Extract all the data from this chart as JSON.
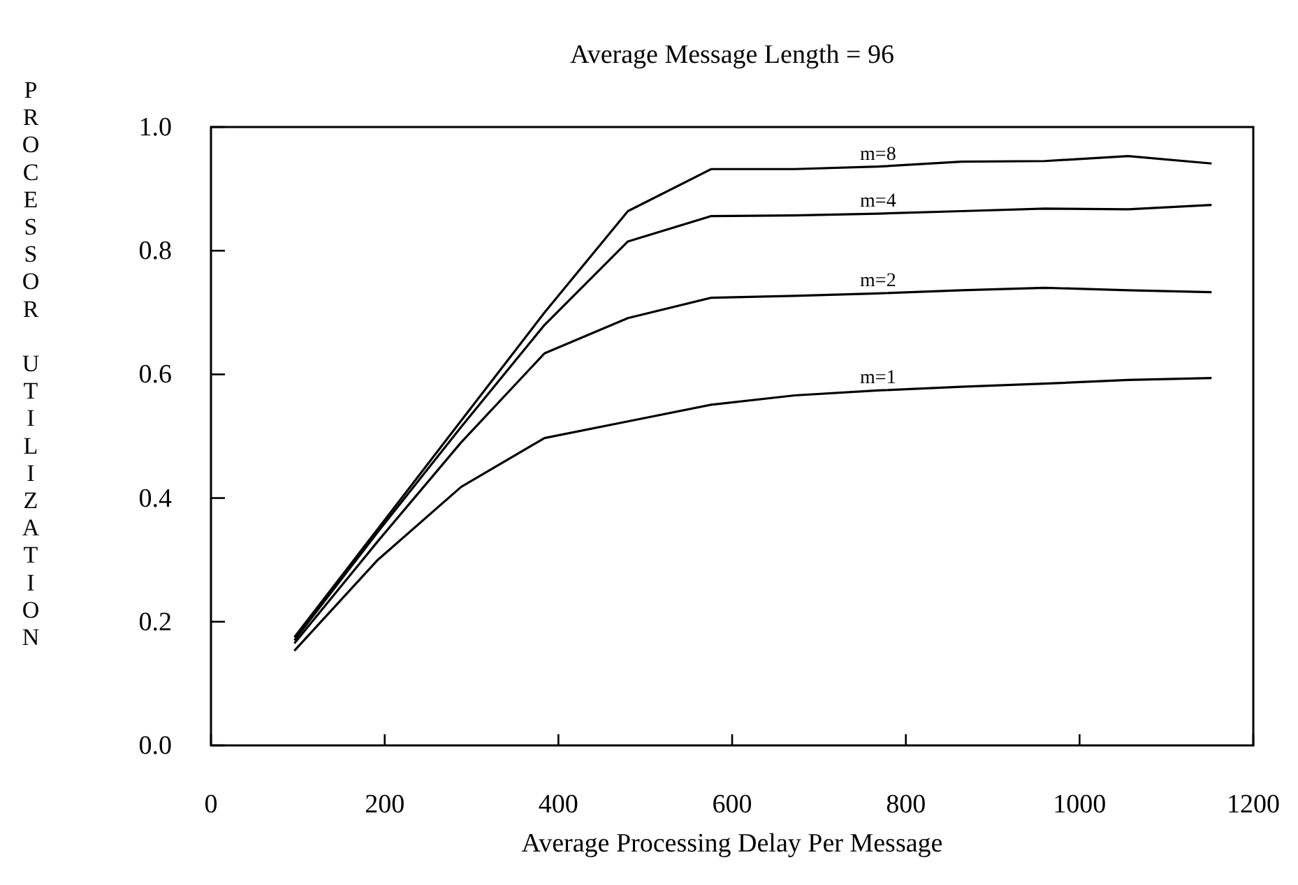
{
  "chart_data": {
    "type": "line",
    "title": "Average Message Length = 96",
    "xlabel": "Average Processing Delay Per Message",
    "ylabel": "PROCESSOR UTILIZATION",
    "x": [
      96,
      192,
      288,
      384,
      480,
      576,
      672,
      768,
      864,
      960,
      1056,
      1152
    ],
    "series": [
      {
        "name": "m=1",
        "color": "#000000",
        "values": [
          0.153,
          0.3,
          0.418,
          0.497,
          0.524,
          0.551,
          0.566,
          0.574,
          0.58,
          0.585,
          0.591,
          0.594
        ]
      },
      {
        "name": "m=2",
        "color": "#000000",
        "values": [
          0.165,
          0.33,
          0.49,
          0.634,
          0.691,
          0.724,
          0.727,
          0.731,
          0.736,
          0.74,
          0.736,
          0.733
        ]
      },
      {
        "name": "m=4",
        "color": "#000000",
        "values": [
          0.17,
          0.345,
          0.515,
          0.68,
          0.815,
          0.856,
          0.857,
          0.86,
          0.864,
          0.868,
          0.867,
          0.874
        ]
      },
      {
        "name": "m=8",
        "color": "#000000",
        "values": [
          0.175,
          0.35,
          0.525,
          0.7,
          0.864,
          0.932,
          0.932,
          0.936,
          0.944,
          0.945,
          0.953,
          0.941
        ]
      }
    ],
    "xlim": [
      0,
      1200
    ],
    "xticks": [
      0,
      200,
      400,
      600,
      800,
      1000,
      1200
    ],
    "ylim": [
      0,
      1
    ],
    "yticks": [
      {
        "value": 0,
        "label": "0.0"
      },
      {
        "value": 0.2,
        "label": "0.2"
      },
      {
        "value": 0.4,
        "label": "0.4"
      },
      {
        "value": 0.6,
        "label": "0.6"
      },
      {
        "value": 0.8,
        "label": "0.8"
      },
      {
        "value": 1,
        "label": "1.0"
      }
    ],
    "grid": false,
    "legend": false,
    "marker": "none",
    "line_style": "solid"
  }
}
